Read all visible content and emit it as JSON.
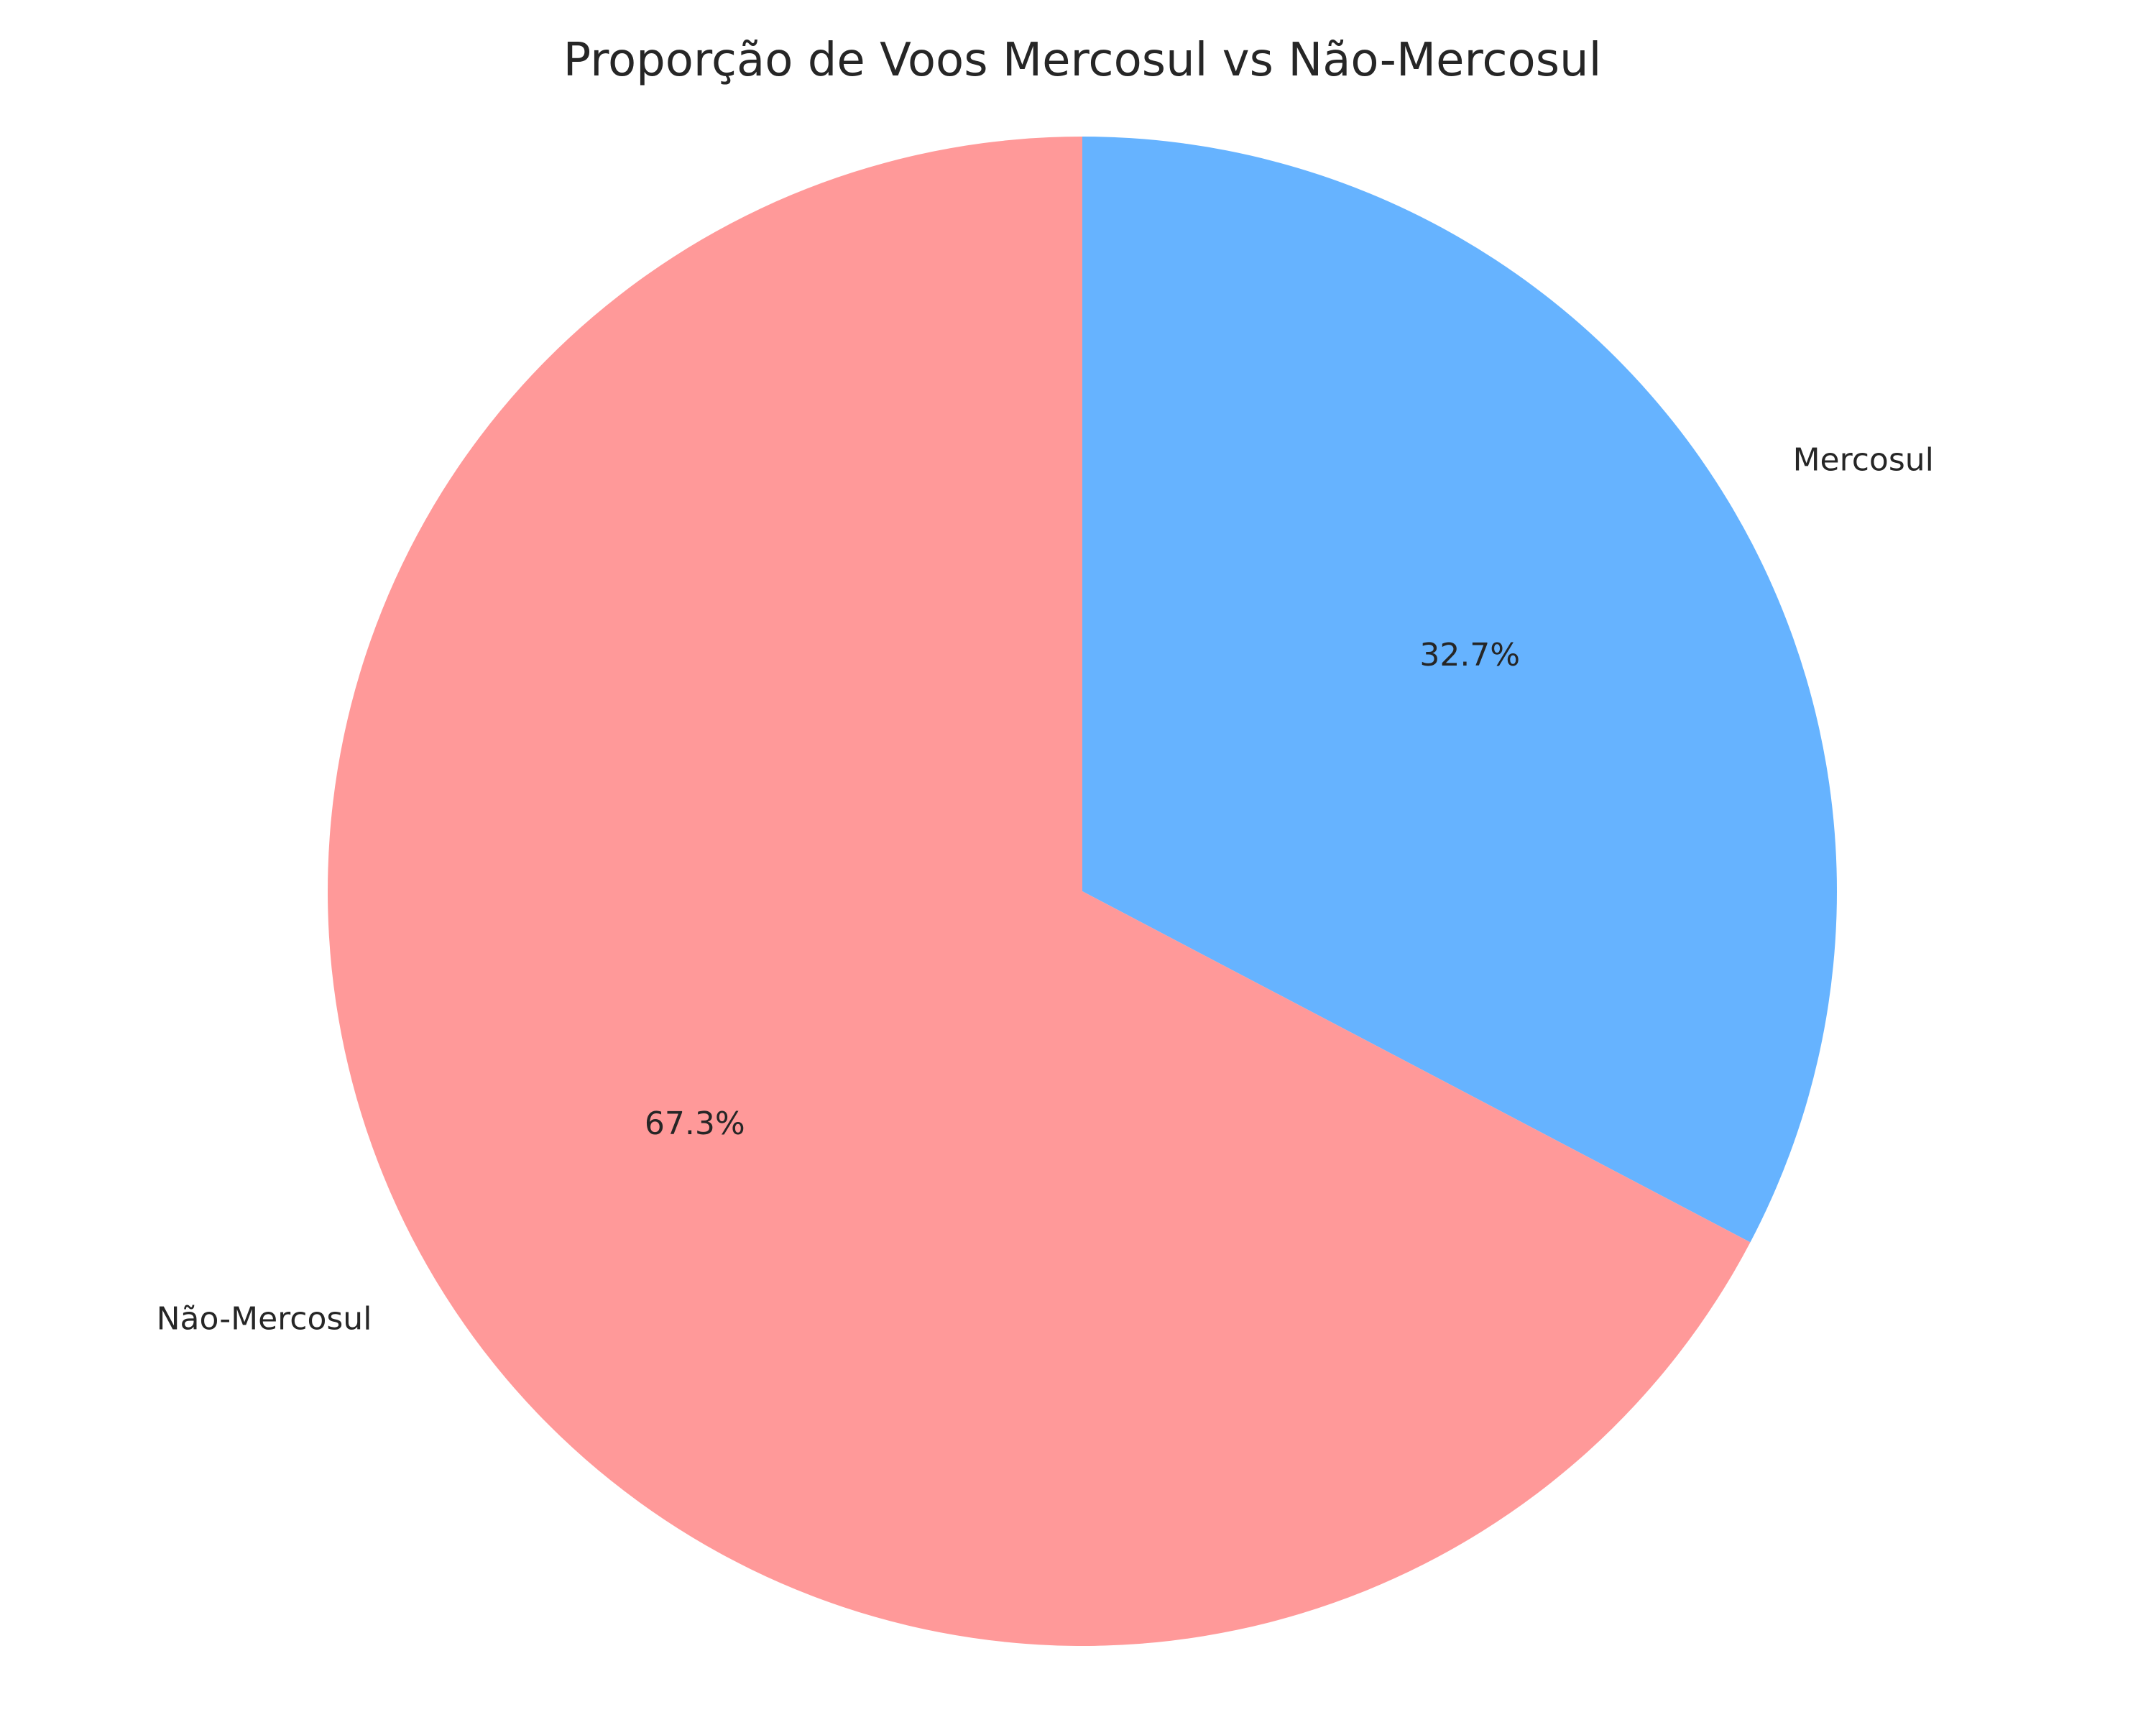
{
  "chart_data": {
    "type": "pie",
    "title": "Proporção de Voos Mercosul vs Não-Mercosul",
    "slices": [
      {
        "label": "Mercosul",
        "value": 32.7,
        "pct_label": "32.7%",
        "color": "#66b3ff"
      },
      {
        "label": "Não-Mercosul",
        "value": 67.3,
        "pct_label": "67.3%",
        "color": "#ff9999"
      }
    ],
    "start_angle_deg": 90,
    "direction": "clockwise",
    "legend": "none"
  }
}
